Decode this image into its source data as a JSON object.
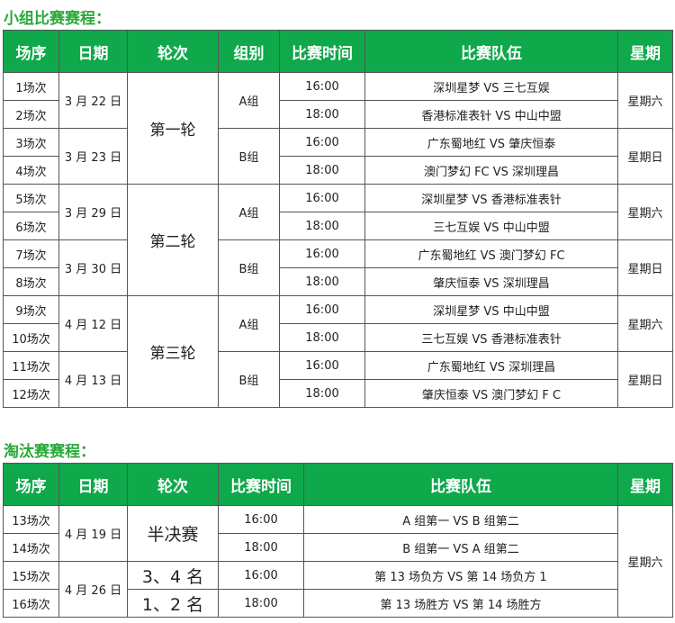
{
  "group_stage": {
    "title": "小组比赛赛程：",
    "headers": [
      "场序",
      "日期",
      "轮次",
      "组别",
      "比赛时间",
      "比赛队伍",
      "星期"
    ],
    "rows": [
      {
        "match": "1场次",
        "time": "16:00",
        "teams": "深圳星梦 VS 三七互娱"
      },
      {
        "match": "2场次",
        "time": "18:00",
        "teams": "香港标准表针 VS 中山中盟"
      },
      {
        "match": "3场次",
        "time": "16:00",
        "teams": "广东蜀地红 VS 肇庆恒泰"
      },
      {
        "match": "4场次",
        "time": "18:00",
        "teams": "澳门梦幻 FC VS 深圳理昌"
      },
      {
        "match": "5场次",
        "time": "16:00",
        "teams": "深圳星梦 VS 香港标准表针"
      },
      {
        "match": "6场次",
        "time": "18:00",
        "teams": "三七互娱 VS 中山中盟"
      },
      {
        "match": "7场次",
        "time": "16:00",
        "teams": "广东蜀地红 VS 澳门梦幻 FC"
      },
      {
        "match": "8场次",
        "time": "18:00",
        "teams": "肇庆恒泰 VS 深圳理昌"
      },
      {
        "match": "9场次",
        "time": "16:00",
        "teams": "深圳星梦 VS 中山中盟"
      },
      {
        "match": "10场次",
        "time": "18:00",
        "teams": "三七互娱 VS 香港标准表针"
      },
      {
        "match": "11场次",
        "time": "16:00",
        "teams": "广东蜀地红 VS 深圳理昌"
      },
      {
        "match": "12场次",
        "time": "18:00",
        "teams": "肇庆恒泰 VS 澳门梦幻 F C"
      }
    ],
    "dates": [
      "3 月 22 日",
      "3 月 23 日",
      "3 月 29 日",
      "3 月 30 日",
      "4 月 12 日",
      "4 月 13 日"
    ],
    "rounds": [
      "第一轮",
      "第二轮",
      "第三轮"
    ],
    "groups": [
      "A组",
      "B组",
      "A组",
      "B组",
      "A组",
      "B组"
    ],
    "weekdays": [
      "星期六",
      "星期日",
      "星期六",
      "星期日",
      "星期六",
      "星期日"
    ]
  },
  "knockout": {
    "title": "淘汰赛赛程：",
    "headers": [
      "场序",
      "日期",
      "轮次",
      "比赛时间",
      "比赛队伍",
      "星期"
    ],
    "rows": [
      {
        "match": "13场次",
        "time": "16:00",
        "teams": "A 组第一 VS B 组第二"
      },
      {
        "match": "14场次",
        "time": "18:00",
        "teams": "B 组第一 VS A 组第二"
      },
      {
        "match": "15场次",
        "time": "16:00",
        "teams": "第 13 场负方 VS 第 14 场负方 1"
      },
      {
        "match": "16场次",
        "time": "18:00",
        "teams": "第 13 场胜方 VS 第 14 场胜方"
      }
    ],
    "dates": [
      "4 月 19 日",
      "4 月 26 日"
    ],
    "rounds": [
      "半决赛",
      "3、4 名",
      "1、2 名"
    ],
    "weekday": "星期六"
  },
  "colors": {
    "header_bg": "#0fa84b",
    "title": "#2aa83a"
  }
}
